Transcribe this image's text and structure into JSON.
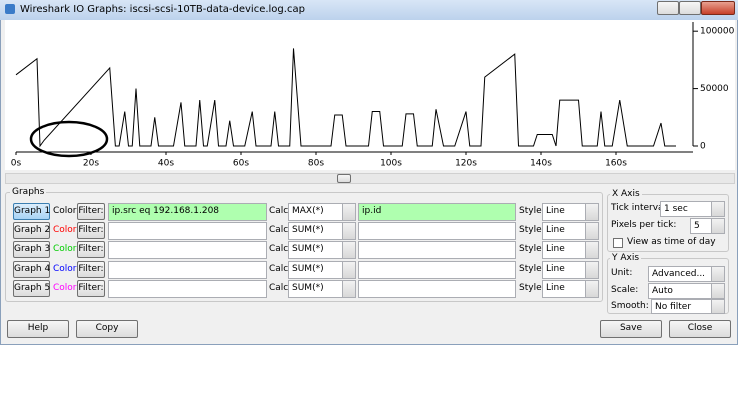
{
  "window": {
    "title": "Wireshark IO Graphs: iscsi-scsi-10TB-data-device.log.cap"
  },
  "graph": {
    "type": "line",
    "color": "#000000",
    "x": [
      0,
      5.6,
      6.4,
      7.5,
      25,
      26.5,
      27.5,
      29,
      30,
      31,
      32,
      33,
      36,
      37,
      38,
      42,
      44,
      45,
      48,
      49,
      50,
      51,
      53,
      54,
      56,
      57,
      58,
      61,
      63,
      64,
      68,
      69,
      70,
      73,
      74,
      76,
      84,
      85,
      87,
      88,
      94,
      95,
      97,
      98,
      103,
      104,
      106,
      107,
      111,
      112,
      114,
      117,
      120,
      121,
      124,
      125,
      133,
      134,
      138,
      139,
      143,
      144,
      145,
      150,
      151,
      155,
      156,
      157,
      159,
      161,
      163,
      170,
      172,
      173,
      176
    ],
    "values": [
      62000,
      76000,
      0,
      5000,
      68000,
      0,
      0,
      30000,
      0,
      0,
      50000,
      0,
      0,
      25000,
      0,
      0,
      38000,
      0,
      0,
      40000,
      0,
      0,
      40000,
      0,
      0,
      22000,
      0,
      0,
      30000,
      0,
      0,
      30000,
      0,
      0,
      85000,
      0,
      0,
      27000,
      27000,
      0,
      0,
      30000,
      30000,
      0,
      0,
      28000,
      28000,
      0,
      0,
      32000,
      0,
      0,
      30000,
      0,
      0,
      60000,
      80000,
      0,
      0,
      10000,
      10000,
      0,
      40000,
      40000,
      0,
      0,
      30000,
      0,
      0,
      40000,
      0,
      0,
      20000,
      0,
      0
    ],
    "xlim": [
      0,
      180
    ],
    "ylim": [
      0,
      108000
    ],
    "xticks": [
      {
        "value": 0,
        "label": "0s"
      },
      {
        "value": 20,
        "label": "20s"
      },
      {
        "value": 40,
        "label": "40s"
      },
      {
        "value": 60,
        "label": "60s"
      },
      {
        "value": 80,
        "label": "80s"
      },
      {
        "value": 100,
        "label": "100s"
      },
      {
        "value": 120,
        "label": "120s"
      },
      {
        "value": 140,
        "label": "140s"
      },
      {
        "value": 160,
        "label": "160s"
      }
    ],
    "yticks": [
      0,
      50000,
      100000
    ]
  },
  "graphs_panel": {
    "title": "Graphs",
    "color_label": "Color",
    "filter_button": "Filter:",
    "calc_label": "Calc:",
    "style_label": "Style:",
    "rows": [
      {
        "button": "Graph 1",
        "color": "#000000",
        "filter": "ip.src eq 192.168.1.208",
        "calc": "MAX(*)",
        "field": "ip.id",
        "style": "Line"
      },
      {
        "button": "Graph 2",
        "color": "#ff0000",
        "filter": "",
        "calc": "SUM(*)",
        "field": "",
        "style": "Line"
      },
      {
        "button": "Graph 3",
        "color": "#00cc00",
        "filter": "",
        "calc": "SUM(*)",
        "field": "",
        "style": "Line"
      },
      {
        "button": "Graph 4",
        "color": "#0000ff",
        "filter": "",
        "calc": "SUM(*)",
        "field": "",
        "style": "Line"
      },
      {
        "button": "Graph 5",
        "color": "#ff00ff",
        "filter": "",
        "calc": "SUM(*)",
        "field": "",
        "style": "Line"
      }
    ]
  },
  "x_axis": {
    "title": "X Axis",
    "tick_interval_label": "Tick interval:",
    "tick_interval": "1 sec",
    "pixels_label": "Pixels per tick:",
    "pixels": 5,
    "time_of_day": "View as time of day"
  },
  "y_axis": {
    "title": "Y Axis",
    "unit_label": "Unit:",
    "unit": "Advanced...",
    "scale_label": "Scale:",
    "scale": "Auto",
    "smooth_label": "Smooth:",
    "smooth": "No filter"
  },
  "buttons": {
    "help": "Help",
    "copy": "Copy",
    "save": "Save",
    "close": "Close"
  }
}
